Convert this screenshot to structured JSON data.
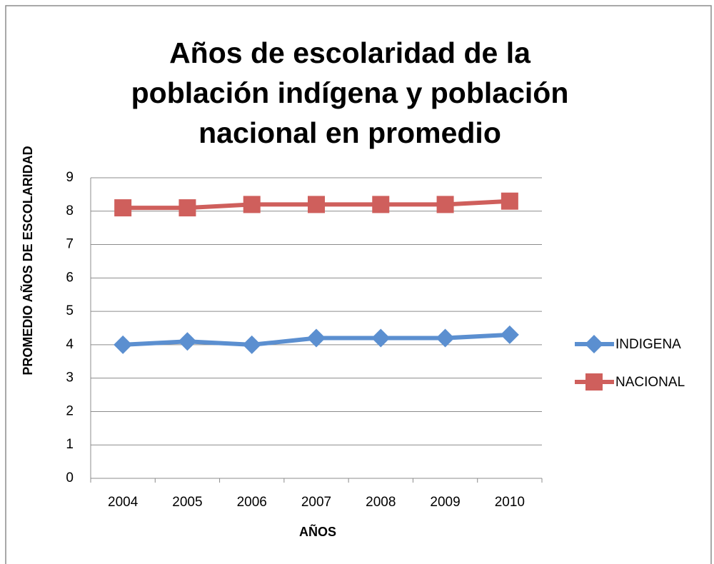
{
  "chart_data": {
    "type": "line",
    "title": "Años de escolaridad de la población indígena y población nacional en promedio",
    "x_label": "AÑOS",
    "y_label": "PROMEDIO AÑOS DE ESCOLARIDAD",
    "categories": [
      "2004",
      "2005",
      "2006",
      "2007",
      "2008",
      "2009",
      "2010"
    ],
    "series": [
      {
        "name": "INDIGENA",
        "color": "#5b8fd0",
        "marker": "diamond",
        "values": [
          4.0,
          4.1,
          4.0,
          4.2,
          4.2,
          4.2,
          4.3
        ]
      },
      {
        "name": "NACIONAL",
        "color": "#cf5f5c",
        "marker": "square",
        "values": [
          8.1,
          8.1,
          8.2,
          8.2,
          8.2,
          8.2,
          8.3
        ]
      }
    ],
    "ylim": [
      0,
      9
    ],
    "yticks": [
      0,
      1,
      2,
      3,
      4,
      5,
      6,
      7,
      8,
      9
    ],
    "grid": true,
    "legend": "right"
  }
}
